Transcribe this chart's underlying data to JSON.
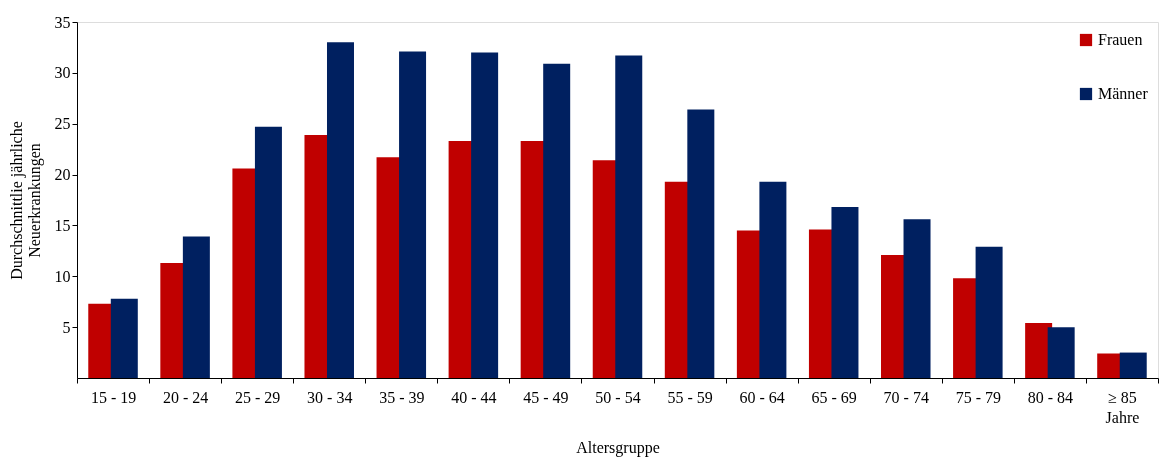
{
  "chart_data": {
    "type": "bar",
    "xlabel": "Altersgruppe",
    "ylabel": "Durchschnittlie jährliche\nNeuerkrankungen",
    "categories": [
      "15 - 19",
      "20 - 24",
      "25 - 29",
      "30 - 34",
      "35 - 39",
      "40 - 44",
      "45 - 49",
      "50 - 54",
      "55 - 59",
      "60 - 64",
      "65 - 69",
      "70 - 74",
      "75 - 79",
      "80 - 84",
      "≥ 85\nJahre"
    ],
    "series": [
      {
        "name": "Frauen",
        "color": "#c00000",
        "values": [
          7.3,
          11.3,
          20.6,
          23.9,
          21.7,
          23.3,
          23.3,
          21.4,
          19.3,
          14.5,
          14.6,
          12.1,
          9.8,
          5.4,
          2.4
        ]
      },
      {
        "name": "Männer",
        "color": "#002060",
        "values": [
          7.8,
          13.9,
          24.7,
          33.0,
          32.1,
          32.0,
          30.9,
          31.7,
          26.4,
          19.3,
          16.8,
          15.6,
          12.9,
          5.0,
          2.5
        ]
      }
    ],
    "ylim": [
      0,
      35
    ],
    "yticks": [
      5,
      10,
      15,
      20,
      25,
      30,
      35
    ],
    "grid": false,
    "legend": "top right"
  }
}
